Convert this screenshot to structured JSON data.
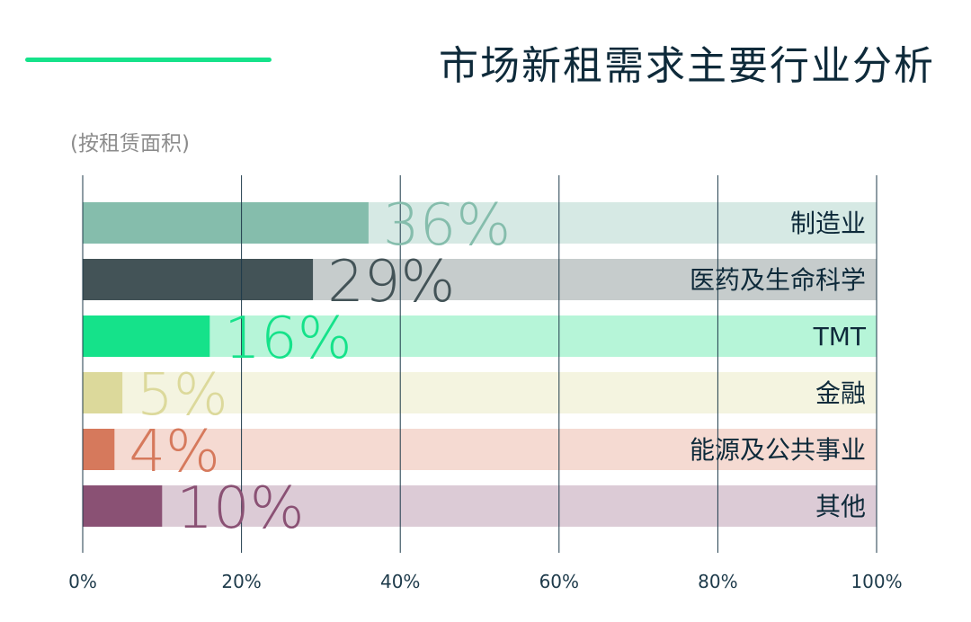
{
  "header": {
    "title": "市场新租需求主要行业分析",
    "subtitle": "(按租赁面积)",
    "accent_color": "#15e28a"
  },
  "chart_data": {
    "type": "bar",
    "orientation": "horizontal",
    "title": "市场新租需求主要行业分析",
    "subtitle": "(按租赁面积)",
    "xlim": [
      0,
      100
    ],
    "x_ticks": [
      "0%",
      "20%",
      "40%",
      "60%",
      "80%",
      "100%"
    ],
    "grid": true,
    "categories": [
      "制造业",
      "医药及生命科学",
      "TMT",
      "金融",
      "能源及公共事业",
      "其他"
    ],
    "values": [
      36,
      29,
      16,
      5,
      4,
      10
    ],
    "value_labels": [
      "36%",
      "29%",
      "16%",
      "5%",
      "4%",
      "10%"
    ],
    "colors": [
      "#85bdac",
      "#435357",
      "#15e28a",
      "#dcd99b",
      "#d6795c",
      "#8a5174"
    ],
    "track_colors": [
      "#d6e9e4",
      "#c6cccc",
      "#b6f5d8",
      "#f4f4e0",
      "#f5dad2",
      "#dccbd6"
    ]
  }
}
